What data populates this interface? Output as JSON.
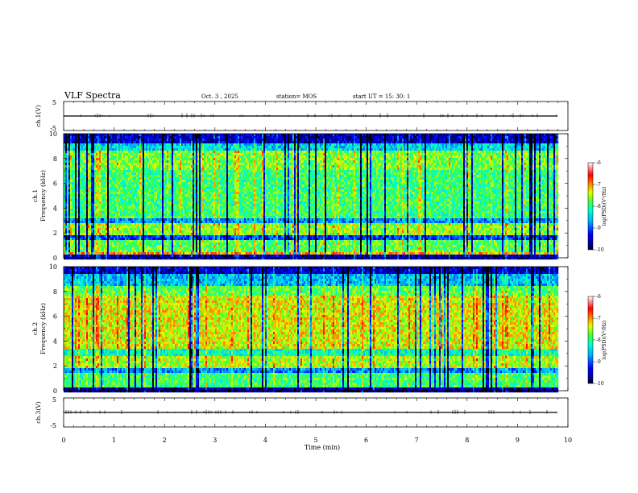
{
  "header": {
    "title": "VLF Spectra",
    "date": "Oct. 3  , 2025",
    "station": "station= MOS",
    "start": "start  UT  =   15: 30: 1"
  },
  "chart_data": [
    {
      "type": "line",
      "name": "ch1-waveform",
      "ylabel": "ch.1(V)",
      "ylim": [
        -5,
        5
      ],
      "yticks": [
        "5",
        "-5"
      ],
      "xlim": [
        0,
        10
      ],
      "baseline": 0
    },
    {
      "type": "heatmap",
      "name": "ch1-spectrogram",
      "ylabel": "ch.1 Frequency (kHz)",
      "ylabel_line1": "ch.1",
      "ylabel_line2": "Frequency (kHz)",
      "ylim": [
        0,
        10
      ],
      "yticks": [
        "0",
        "2",
        "4",
        "6",
        "8",
        "10"
      ],
      "xlim": [
        0,
        10
      ],
      "data_end_min": 9.83,
      "colorbar": {
        "label": "log(PSD)(V²/Hz)",
        "range": [
          -10,
          -6
        ],
        "ticks": [
          "-6",
          "-7",
          "-8",
          "-9",
          "-10"
        ]
      }
    },
    {
      "type": "heatmap",
      "name": "ch2-spectrogram",
      "ylabel": "ch.2 Frequency (kHz)",
      "ylabel_line1": "ch.2",
      "ylabel_line2": "Frequency (kHz)",
      "ylim": [
        0,
        10
      ],
      "yticks": [
        "0",
        "2",
        "4",
        "6",
        "8",
        "10"
      ],
      "xlim": [
        0,
        10
      ],
      "data_end_min": 9.83,
      "colorbar": {
        "label": "log(PSD)(V²/Hz)",
        "range": [
          -10,
          -6
        ],
        "ticks": [
          "-6",
          "-7",
          "-8",
          "-9",
          "-10"
        ]
      }
    },
    {
      "type": "line",
      "name": "ch3-waveform",
      "ylabel": "ch.3(V)",
      "ylim": [
        -5,
        5
      ],
      "yticks": [
        "5",
        "-5"
      ],
      "xlim": [
        0,
        10
      ],
      "baseline": 0
    }
  ],
  "xaxis": {
    "label": "Time  (min)",
    "ticks": [
      "0",
      "1",
      "2",
      "3",
      "4",
      "5",
      "6",
      "7",
      "8",
      "9",
      "10"
    ]
  },
  "colors": {
    "jet": [
      "#000080",
      "#0000ff",
      "#00a0ff",
      "#00ffff",
      "#60ff60",
      "#ffff00",
      "#ff8000",
      "#ff0000",
      "#ffffff"
    ]
  }
}
